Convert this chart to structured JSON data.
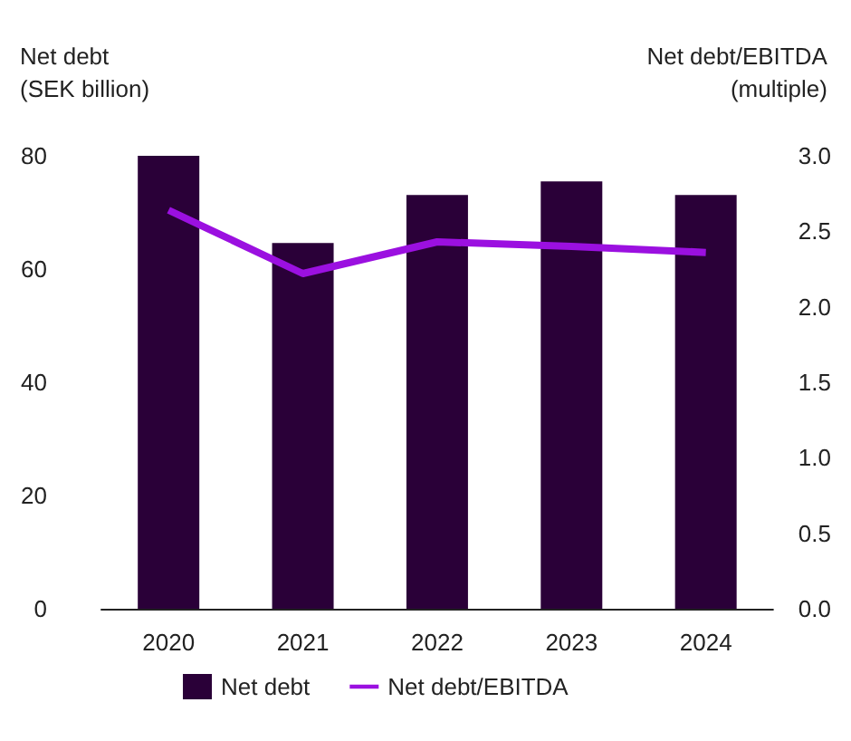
{
  "chart_data": {
    "type": "bar",
    "ylabel": "Net debt\n(SEK billion)",
    "y2label": "Net debt/EBITDA\n(multiple)",
    "categories": [
      "2020",
      "2021",
      "2022",
      "2023",
      "2024"
    ],
    "series": [
      {
        "name": "Net debt",
        "color": "#2a0038",
        "values": [
          80,
          64.6,
          73.1,
          75.5,
          73.1
        ]
      },
      {
        "name": "Net debt/EBITDA",
        "type": "line",
        "axis": "y2",
        "color": "#9b10e0",
        "marker": "none",
        "values": [
          2.64,
          2.22,
          2.43,
          2.4,
          2.36
        ]
      }
    ],
    "ylim": [
      0,
      80
    ],
    "yticks": [
      0,
      20,
      40,
      60,
      80
    ],
    "y2lim": [
      0,
      3
    ],
    "y2ticks": [
      {
        "value": 0,
        "label": "0.0"
      },
      {
        "value": 0.5,
        "label": "0.5"
      },
      {
        "value": 1,
        "label": "1.0"
      },
      {
        "value": 1.5,
        "label": "1.5"
      },
      {
        "value": 2,
        "label": "2.0"
      },
      {
        "value": 2.5,
        "label": "2.5"
      },
      {
        "value": 3,
        "label": "3.0"
      }
    ],
    "grid": false,
    "legend": "bottom left"
  }
}
